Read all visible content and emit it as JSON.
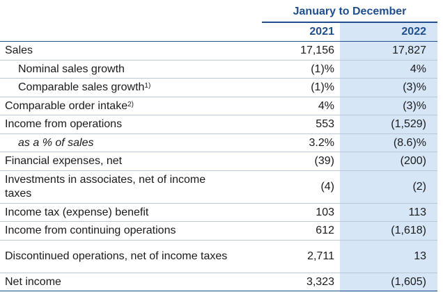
{
  "table": {
    "group_header": "January to December",
    "years": [
      "2021",
      "2022"
    ],
    "rows": [
      {
        "label": "Sales",
        "fn": "",
        "v2021": "17,156",
        "v2022": "17,827"
      },
      {
        "label": "Nominal sales growth",
        "fn": "",
        "v2021": "(1)%",
        "v2022": "4%"
      },
      {
        "label": "Comparable sales growth",
        "fn": "1)",
        "v2021": "(1)%",
        "v2022": "(3)%"
      },
      {
        "label": "Comparable order intake",
        "fn": "2)",
        "v2021": "4%",
        "v2022": "(3)%"
      },
      {
        "label": "Income from operations",
        "fn": "",
        "v2021": "553",
        "v2022": "(1,529)"
      },
      {
        "label": "as a % of sales",
        "fn": "",
        "v2021": "3.2%",
        "v2022": "(8.6)%"
      },
      {
        "label": "Financial expenses, net",
        "fn": "",
        "v2021": "(39)",
        "v2022": "(200)"
      },
      {
        "label": "Investments in associates, net of income taxes",
        "fn": "",
        "v2021": "(4)",
        "v2022": "(2)"
      },
      {
        "label": "Income tax (expense) benefit",
        "fn": "",
        "v2021": "103",
        "v2022": "113"
      },
      {
        "label": "Income from continuing operations",
        "fn": "",
        "v2021": "612",
        "v2022": "(1,618)"
      },
      {
        "label": "Discontinued operations, net of income taxes",
        "fn": "",
        "v2021": "2,711",
        "v2022": "13"
      },
      {
        "label": "Net income",
        "fn": "",
        "v2021": "3,323",
        "v2022": "(1,605)"
      }
    ]
  },
  "colors": {
    "header_text": "#1f4e8c",
    "highlight_column": "#d6e6f6",
    "rule": "#b9c7d6"
  }
}
